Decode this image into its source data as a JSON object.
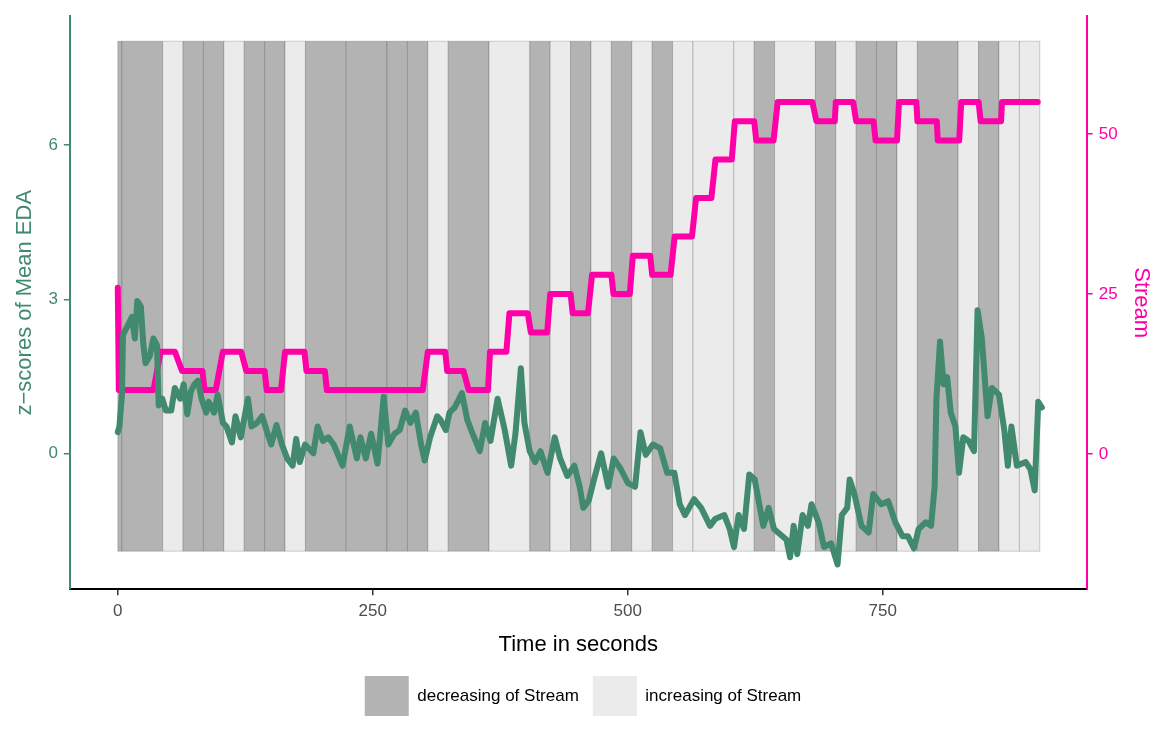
{
  "chart_data": {
    "type": "line",
    "xlabel": "Time in seconds",
    "ylabel": "z−scores of Mean EDA",
    "y2label": "Stream",
    "xlim": [
      -47,
      950
    ],
    "xticks": [
      0,
      250,
      500,
      750
    ],
    "ylim": [
      -2.63,
      8.5
    ],
    "yticks": [
      0,
      3,
      6
    ],
    "y2lim": [
      -21.1,
      68.4
    ],
    "y2ticks": [
      0,
      25,
      50
    ],
    "grid": false,
    "legend": "bottom",
    "line_style": "solid",
    "series": [
      {
        "color": "#418a6e",
        "axis": "y",
        "x": [
          0,
          1.6,
          4.1,
          5.1,
          10.4,
          13.9,
          16.7,
          19.1,
          22.6,
          25.1,
          27.2,
          31.4,
          34.9,
          38.4,
          40.1,
          43.6,
          47.1,
          52.4,
          55.9,
          61.1,
          64.6,
          68.1,
          71.6,
          75.1,
          78.6,
          82.1,
          86.7,
          89.1,
          94.4,
          97.9,
          103.1,
          106.6,
          111.9,
          115.4,
          120.6,
          127.6,
          131.1,
          136.4,
          141.6,
          146.9,
          150.4,
          155.6,
          160.9,
          166.1,
          171.4,
          174.9,
          178.4,
          183.6,
          191.7,
          195.9,
          201.2,
          206.4,
          211.7,
          220.4,
          227.4,
          234.4,
          237.9,
          243.2,
          248.4,
          254.7,
          260.7,
          265.2,
          271.2,
          276.4,
          281.7,
          286.9,
          292.2,
          297.4,
          300.9,
          306.2,
          313.2,
          316.4,
          321.7,
          325.2,
          330.4,
          337.4,
          342.7,
          347.9,
          354.9,
          360.2,
          365.4,
          372.4,
          379.4,
          385.7,
          389.9,
          395.2,
          398.7,
          403.9,
          409.2,
          414.4,
          421.4,
          428.4,
          433.7,
          440.7,
          447.7,
          452.9,
          456.4,
          461.7,
          466.9,
          473.9,
          480.9,
          486.2,
          493.2,
          500.2,
          507.2,
          512.5,
          517.7,
          524.7,
          531.7,
          538.7,
          545.7,
          551,
          556.2,
          565,
          572,
          580.7,
          586,
          594.7,
          600,
          604.2,
          608.7,
          614,
          619.2,
          624.5,
          632.9,
          638.2,
          643.4,
          655.7,
          659.2,
          662.7,
          666.2,
          671.4,
          676.7,
          680.2,
          687.2,
          692.4,
          699.4,
          705.7,
          709.9,
          715.2,
          717.6,
          722.2,
          729.2,
          736.2,
          740.7,
          748.4,
          755.4,
          762.4,
          769.4,
          774.7,
          780.6,
          785.2,
          792.2,
          797.4,
          800.9,
          802.7,
          806.2,
          809.7,
          813.2,
          816.7,
          821.3,
          824.8,
          829,
          834.2,
          839.5,
          843,
          847.2,
          852.8,
          857,
          864,
          869.2,
          872.7,
          876.2,
          881.5,
          890.2,
          894.8,
          899,
          902.5,
          906
        ],
        "values": [
          0.42,
          0.53,
          1.15,
          2.31,
          2.52,
          2.66,
          2.24,
          2.97,
          2.86,
          2.11,
          1.76,
          1.9,
          2.24,
          2.11,
          0.94,
          1.07,
          0.84,
          0.84,
          1.28,
          1.07,
          1.35,
          0.77,
          1.21,
          1.35,
          1.42,
          1.07,
          0.8,
          1.01,
          0.8,
          1.15,
          0.6,
          0.53,
          0.22,
          0.73,
          0.32,
          1.07,
          0.53,
          0.6,
          0.73,
          0.39,
          0.18,
          0.56,
          0.18,
          -0.09,
          -0.23,
          0.29,
          -0.16,
          0.18,
          0.01,
          0.53,
          0.25,
          0.32,
          0.18,
          -0.23,
          0.53,
          -0.09,
          0.32,
          -0.09,
          0.39,
          -0.19,
          1.11,
          0.18,
          0.39,
          0.46,
          0.84,
          0.6,
          0.8,
          0.18,
          -0.13,
          0.32,
          0.73,
          0.66,
          0.46,
          0.8,
          0.9,
          1.18,
          0.66,
          0.39,
          0.05,
          0.6,
          0.25,
          1.07,
          0.46,
          -0.23,
          0.39,
          1.66,
          0.6,
          0.05,
          -0.16,
          0.05,
          -0.37,
          0.32,
          -0.09,
          -0.43,
          -0.23,
          -0.64,
          -1.05,
          -0.91,
          -0.5,
          0.01,
          -0.64,
          -0.09,
          -0.3,
          -0.57,
          -0.64,
          0.42,
          -0.02,
          0.18,
          0.11,
          -0.37,
          -0.37,
          -0.98,
          -1.19,
          -0.88,
          -1.05,
          -1.4,
          -1.26,
          -1.19,
          -1.46,
          -1.81,
          -1.19,
          -1.46,
          -0.4,
          -0.5,
          -1.4,
          -1.05,
          -1.46,
          -1.67,
          -2.01,
          -1.4,
          -1.95,
          -1.19,
          -1.4,
          -0.98,
          -1.33,
          -1.81,
          -1.74,
          -2.15,
          -1.19,
          -1.05,
          -0.5,
          -0.78,
          -1.4,
          -1.53,
          -0.78,
          -0.98,
          -0.92,
          -1.33,
          -1.6,
          -1.6,
          -1.84,
          -1.46,
          -1.33,
          -1.4,
          -0.64,
          1.08,
          2.18,
          1.35,
          1.49,
          0.8,
          0.53,
          -0.37,
          0.32,
          0.25,
          0.05,
          2.79,
          2.24,
          0.73,
          1.28,
          1.15,
          0.46,
          -0.23,
          0.53,
          -0.23,
          -0.16,
          -0.3,
          -0.71,
          1.01,
          0.9
        ]
      },
      {
        "color": "#ff00a8",
        "axis": "y2",
        "x": [
          0,
          1,
          35,
          42,
          56,
          63,
          83,
          85,
          96,
          103,
          121,
          126,
          144,
          146,
          160,
          164,
          183,
          185,
          203,
          205,
          299,
          304,
          321,
          323,
          339,
          344,
          363,
          365,
          381,
          384,
          402,
          405,
          421,
          424,
          444,
          446,
          461,
          465,
          484,
          486,
          502,
          505,
          522,
          524,
          542,
          546,
          563,
          567,
          582,
          586,
          602,
          605,
          624,
          626,
          643,
          647,
          681,
          685,
          703,
          704,
          721,
          724,
          741,
          743,
          764,
          766,
          783,
          784,
          803,
          804,
          825,
          827,
          844,
          846,
          866,
          867,
          902
        ],
        "values": [
          26,
          10,
          10,
          16,
          16,
          13,
          13,
          10,
          10,
          16,
          16,
          13,
          13,
          10,
          10,
          16,
          16,
          13,
          13,
          10,
          10,
          16,
          16,
          13,
          13,
          10,
          10,
          16,
          16,
          22,
          22,
          19,
          19,
          25,
          25,
          22,
          22,
          28,
          28,
          25,
          25,
          31,
          31,
          28,
          28,
          34,
          34,
          40,
          40,
          46,
          46,
          52,
          52,
          49,
          49,
          55,
          55,
          52,
          52,
          55,
          55,
          52,
          52,
          49,
          49,
          55,
          55,
          52,
          52,
          49,
          49,
          55,
          55,
          52,
          52,
          55,
          55
        ]
      }
    ],
    "bands": [
      {
        "axis": "x",
        "from": 0,
        "to": 4,
        "label": "decreasing of Stream",
        "color": "#b3b3b3"
      },
      {
        "axis": "x",
        "from": 4,
        "to": 44,
        "color": "#b3b3b3"
      },
      {
        "axis": "x",
        "from": 44,
        "to": 64,
        "label": "increasing of Stream",
        "color": "#ebebeb"
      },
      {
        "axis": "x",
        "from": 64,
        "to": 84,
        "color": "#b3b3b3"
      },
      {
        "axis": "x",
        "from": 84,
        "to": 104,
        "color": "#b3b3b3"
      },
      {
        "axis": "x",
        "from": 104,
        "to": 124,
        "color": "#ebebeb"
      },
      {
        "axis": "x",
        "from": 124,
        "to": 144,
        "color": "#b3b3b3"
      },
      {
        "axis": "x",
        "from": 144,
        "to": 164,
        "color": "#b3b3b3"
      },
      {
        "axis": "x",
        "from": 164,
        "to": 184,
        "color": "#ebebeb"
      },
      {
        "axis": "x",
        "from": 184,
        "to": 224,
        "color": "#b3b3b3"
      },
      {
        "axis": "x",
        "from": 224,
        "to": 264,
        "color": "#b3b3b3"
      },
      {
        "axis": "x",
        "from": 264,
        "to": 284,
        "color": "#b3b3b3"
      },
      {
        "axis": "x",
        "from": 284,
        "to": 304,
        "color": "#b3b3b3"
      },
      {
        "axis": "x",
        "from": 304,
        "to": 324,
        "color": "#ebebeb"
      },
      {
        "axis": "x",
        "from": 324,
        "to": 364,
        "color": "#b3b3b3"
      },
      {
        "axis": "x",
        "from": 364,
        "to": 404,
        "color": "#ebebeb"
      },
      {
        "axis": "x",
        "from": 404,
        "to": 424,
        "color": "#b3b3b3"
      },
      {
        "axis": "x",
        "from": 424,
        "to": 444,
        "color": "#ebebeb"
      },
      {
        "axis": "x",
        "from": 444,
        "to": 464,
        "color": "#b3b3b3"
      },
      {
        "axis": "x",
        "from": 464,
        "to": 484,
        "color": "#ebebeb"
      },
      {
        "axis": "x",
        "from": 484,
        "to": 504,
        "color": "#b3b3b3"
      },
      {
        "axis": "x",
        "from": 504,
        "to": 524,
        "color": "#ebebeb"
      },
      {
        "axis": "x",
        "from": 524,
        "to": 544,
        "color": "#b3b3b3"
      },
      {
        "axis": "x",
        "from": 544,
        "to": 564,
        "color": "#ebebeb"
      },
      {
        "axis": "x",
        "from": 564,
        "to": 604,
        "color": "#ebebeb"
      },
      {
        "axis": "x",
        "from": 604,
        "to": 624,
        "color": "#ebebeb"
      },
      {
        "axis": "x",
        "from": 624,
        "to": 644,
        "color": "#b3b3b3"
      },
      {
        "axis": "x",
        "from": 644,
        "to": 684,
        "color": "#ebebeb"
      },
      {
        "axis": "x",
        "from": 684,
        "to": 704,
        "color": "#b3b3b3"
      },
      {
        "axis": "x",
        "from": 704,
        "to": 724,
        "color": "#ebebeb"
      },
      {
        "axis": "x",
        "from": 724,
        "to": 744,
        "color": "#b3b3b3"
      },
      {
        "axis": "x",
        "from": 744,
        "to": 764,
        "color": "#b3b3b3"
      },
      {
        "axis": "x",
        "from": 764,
        "to": 784,
        "color": "#ebebeb"
      },
      {
        "axis": "x",
        "from": 784,
        "to": 824,
        "color": "#b3b3b3"
      },
      {
        "axis": "x",
        "from": 824,
        "to": 844,
        "color": "#ebebeb"
      },
      {
        "axis": "x",
        "from": 844,
        "to": 864,
        "color": "#b3b3b3"
      },
      {
        "axis": "x",
        "from": 864,
        "to": 884,
        "color": "#ebebeb"
      },
      {
        "axis": "x",
        "from": 884,
        "to": 904,
        "color": "#ebebeb"
      }
    ]
  }
}
